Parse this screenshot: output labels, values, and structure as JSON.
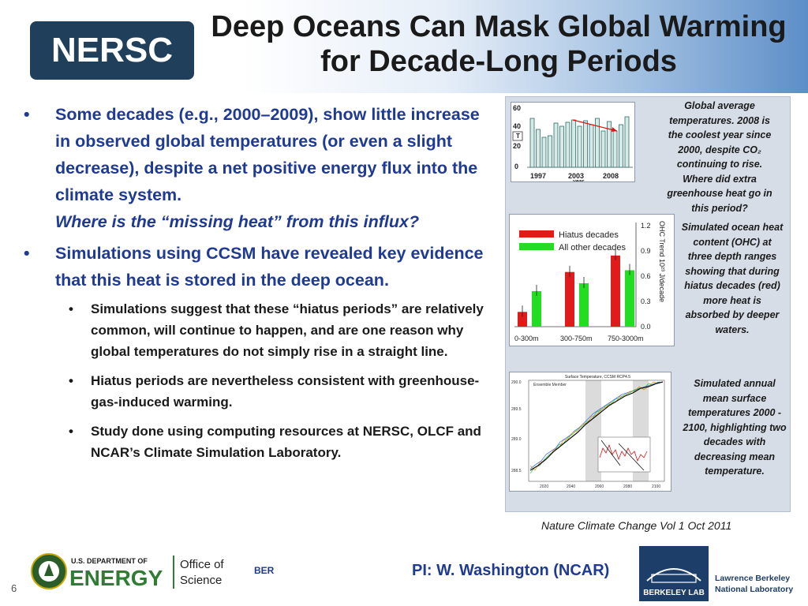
{
  "title": {
    "line1": "Deep Oceans Can Mask Global Warming",
    "line2": "for Decade-Long Periods"
  },
  "logo": {
    "text": "NERSC"
  },
  "bullets": [
    {
      "text": "Some decades (e.g., 2000–2009), show little increase in observed global temperatures (or even a slight decrease), despite a net positive energy flux into the climate system.",
      "emphasis": "Where is the “missing heat” from this influx?"
    },
    {
      "text": "Simulations using CCSM have revealed key evidence that this heat is stored in the deep ocean."
    }
  ],
  "sub_bullets": [
    "Simulations suggest that these “hiatus periods” are relatively common, will continue to happen, and are one reason why global temperatures do not simply rise in a straight line.",
    "Hiatus periods are nevertheless consistent with greenhouse-gas-induced warming.",
    "Study done using computing resources at NERSC, OLCF and NCAR’s Climate Simulation Laboratory."
  ],
  "figure1": {
    "caption": "Global average temperatures. 2008 is the coolest year since 2000, despite CO₂ continuing to rise. Where did extra greenhouse heat go in this period?",
    "y_ticks": [
      "60",
      "40",
      "20",
      "0"
    ],
    "x_ticks": [
      "1997",
      "2003",
      "2008"
    ],
    "y_label": "T",
    "x_label": "year"
  },
  "figure2": {
    "caption": "Simulated ocean heat content (OHC) at three depth ranges showing that during hiatus decades (red) more heat is absorbed by deeper waters.",
    "legend": [
      "Hiatus decades",
      "All other decades"
    ],
    "categories": [
      "0-300m",
      "300-750m",
      "750-3000m"
    ],
    "y_ticks": [
      "1.2",
      "0.9",
      "0.6",
      "0.3",
      "0.0"
    ],
    "y_label": "OHC Trend 10²³ J/decade",
    "colors": {
      "hiatus": "#e01b1b",
      "other": "#22dd22"
    },
    "values_hiatus": [
      0.17,
      0.63,
      0.82
    ],
    "values_other": [
      0.41,
      0.5,
      0.65
    ]
  },
  "figure3": {
    "caption": "Simulated annual mean surface temperatures 2000 - 2100, highlighting two decades with decreasing mean temperature.",
    "title": "Surface Temperature, CCSM RCP4.5",
    "legend_title": "Ensemble Member",
    "y_ticks": [
      "290.0",
      "289.5",
      "289.0",
      "288.5"
    ],
    "x_ticks": [
      "2020",
      "2040",
      "2060",
      "2080",
      "2100"
    ]
  },
  "citation": "Nature Climate Change  Vol 1  Oct 2011",
  "footer": {
    "doe_line1": "U.S. DEPARTMENT OF",
    "doe_line2": "ENERGY",
    "office": "Office of",
    "science": "Science",
    "ber": "BER",
    "pi": "PI: W. Washington (NCAR)",
    "page": "6",
    "lab_badge": "BERKELEY LAB",
    "lab_name1": "Lawrence Berkeley",
    "lab_name2": "National Laboratory"
  }
}
